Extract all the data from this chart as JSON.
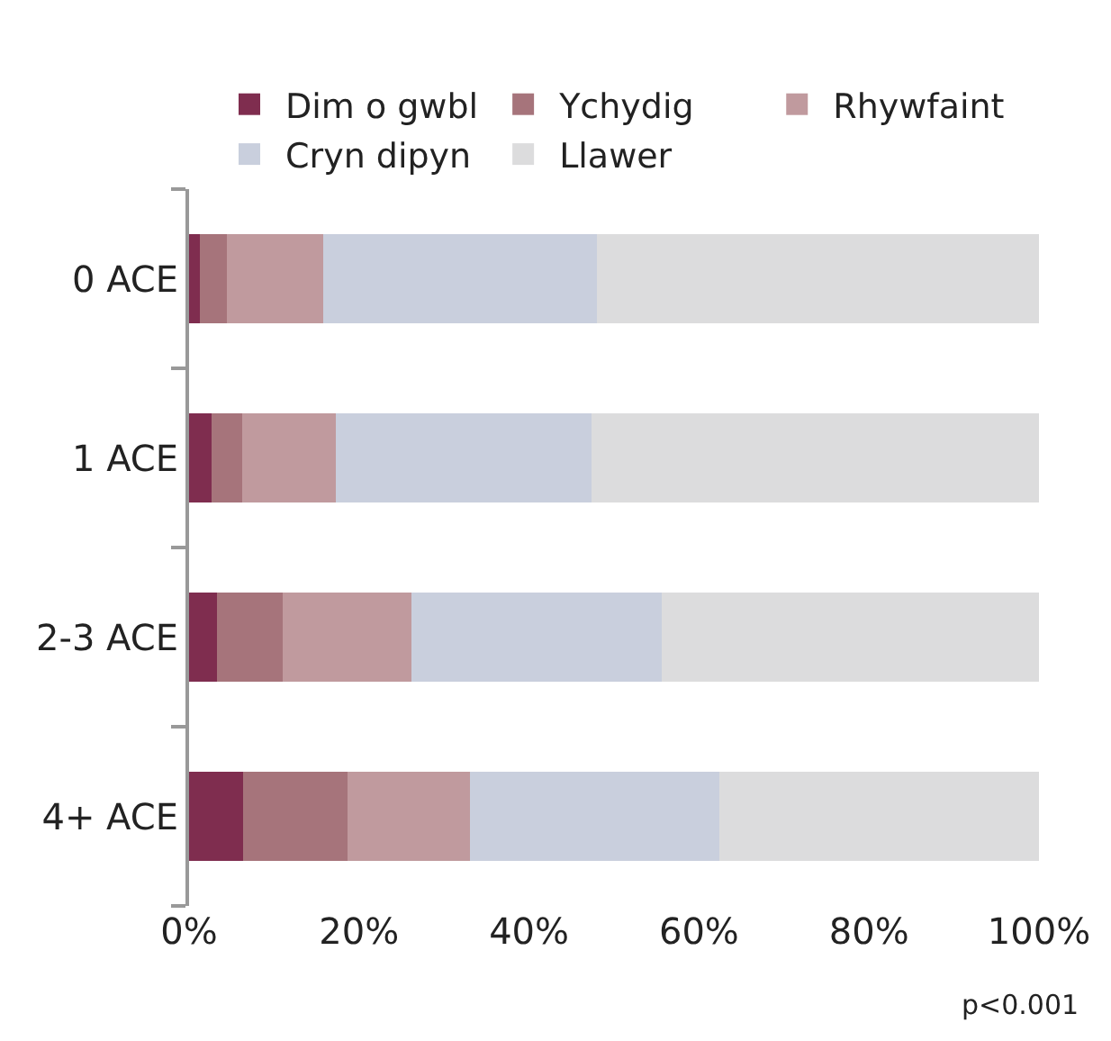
{
  "chart_data": {
    "type": "bar",
    "orientation": "horizontal",
    "stacked": true,
    "categories": [
      "0 ACE",
      "1 ACE",
      "2-3 ACE",
      "4+ ACE"
    ],
    "series": [
      {
        "name": "Dim o gwbl",
        "color": "#7f2d4f",
        "values": [
          1.3,
          2.7,
          3.3,
          6.4
        ]
      },
      {
        "name": "Ychydig",
        "color": "#a6747b",
        "values": [
          3.2,
          3.5,
          7.7,
          12.2
        ]
      },
      {
        "name": "Rhywfaint",
        "color": "#c09a9e",
        "values": [
          11.3,
          11.1,
          15.2,
          14.4
        ]
      },
      {
        "name": "Cryn dipyn",
        "color": "#c9cfdd",
        "values": [
          32.2,
          30.0,
          29.4,
          29.4
        ]
      },
      {
        "name": "Llawer",
        "color": "#dcdcdd",
        "values": [
          52.0,
          52.7,
          44.4,
          37.6
        ]
      }
    ],
    "xlim": [
      0,
      100
    ],
    "xticks": [
      {
        "value": 0,
        "label": "0%"
      },
      {
        "value": 20,
        "label": "20%"
      },
      {
        "value": 40,
        "label": "40%"
      },
      {
        "value": 60,
        "label": "60%"
      },
      {
        "value": 80,
        "label": "80%"
      },
      {
        "value": 100,
        "label": "100%"
      }
    ],
    "legend": "top",
    "annotations": [
      "p<0.001"
    ]
  }
}
